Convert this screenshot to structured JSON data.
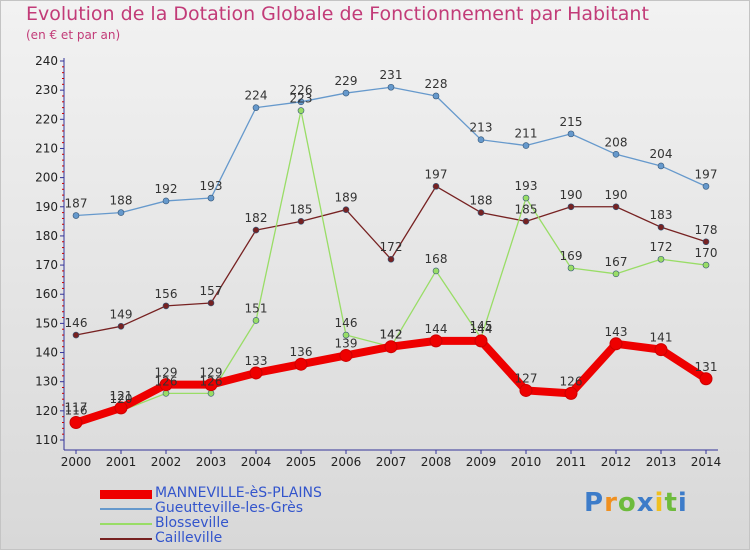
{
  "header": {
    "title": "Evolution de la Dotation Globale de Fonctionnement par Habitant",
    "subtitle": "(en € et par an)"
  },
  "logo": {
    "text": "Proxiti"
  },
  "colors": {
    "title": "#c23b78",
    "axis": "#333399",
    "legend_text": "#3355cc"
  },
  "chart_data": {
    "type": "line",
    "title": "Evolution de la Dotation Globale de Fonctionnement par Habitant",
    "subtitle": "(en € et par an)",
    "xlabel": "",
    "ylabel": "",
    "x": [
      "2000",
      "2001",
      "2002",
      "2003",
      "2004",
      "2005",
      "2006",
      "2007",
      "2008",
      "2009",
      "2010",
      "2011",
      "2012",
      "2013",
      "2014"
    ],
    "ylim": [
      110,
      240
    ],
    "yticks": [
      110,
      120,
      130,
      140,
      150,
      160,
      170,
      180,
      190,
      200,
      210,
      220,
      230,
      240
    ],
    "grid": false,
    "legend_position": "bottom-left",
    "series": [
      {
        "name": "MANNEVILLE-èS-PLAINS",
        "color": "#ee0000",
        "values": [
          116,
          121,
          129,
          129,
          133,
          136,
          139,
          142,
          144,
          144,
          127,
          126,
          143,
          141,
          131
        ]
      },
      {
        "name": "Gueutteville-les-Grès",
        "color": "#6699cc",
        "values": [
          187,
          188,
          192,
          193,
          224,
          226,
          229,
          231,
          228,
          213,
          211,
          215,
          208,
          204,
          197
        ]
      },
      {
        "name": "Blosseville",
        "color": "#99dd66",
        "values": [
          117,
          120,
          126,
          126,
          151,
          223,
          146,
          142,
          168,
          145,
          193,
          169,
          167,
          172,
          170
        ]
      },
      {
        "name": "Cailleville",
        "color": "#772222",
        "values": [
          146,
          149,
          156,
          157,
          182,
          185,
          189,
          172,
          197,
          188,
          185,
          190,
          190,
          183,
          178
        ]
      }
    ]
  }
}
